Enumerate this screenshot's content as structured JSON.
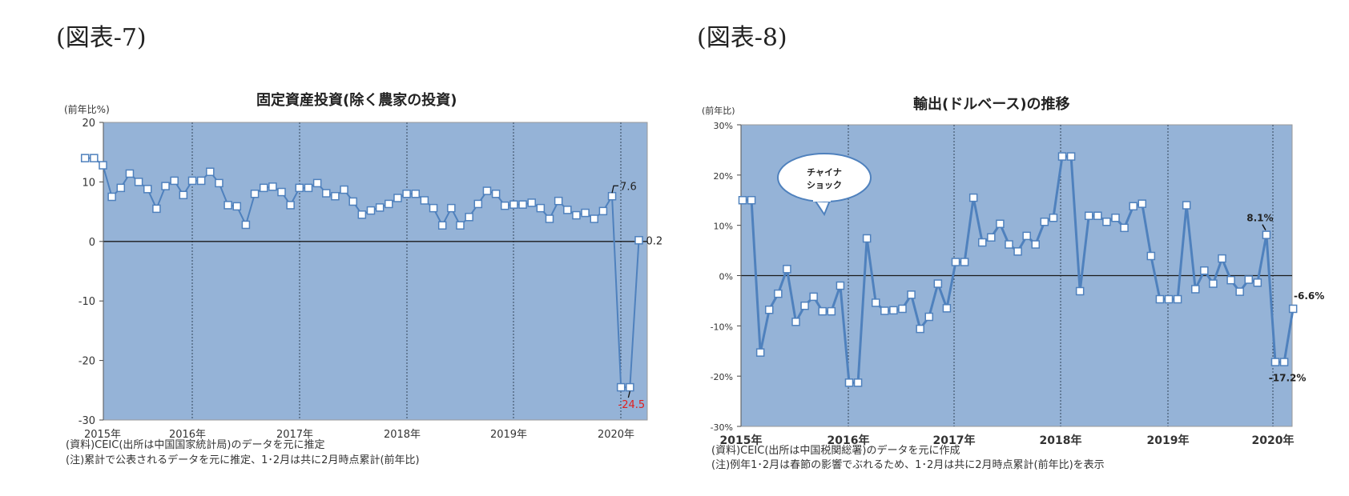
{
  "figures": [
    {
      "label": "(図表-7)"
    },
    {
      "label": "(図表-8)"
    }
  ],
  "chart_data": [
    {
      "type": "line",
      "title": "固定資産投資(除く農家の投資)",
      "ylabel": "(前年比%)",
      "xlabel": "",
      "ylim": [
        -30,
        20
      ],
      "yticks": [
        "20",
        "10",
        "0",
        "-10",
        "-20",
        "-30"
      ],
      "xticks": [
        "2015年",
        "2016年",
        "2017年",
        "2018年",
        "2019年",
        "2020年"
      ],
      "grid": "vertical dashed at year boundaries",
      "plot_bg": "#95b3d7",
      "line_color": "#4f81bd",
      "x": [
        "2015-01",
        "2015-02",
        "2015-03",
        "2015-04",
        "2015-05",
        "2015-06",
        "2015-07",
        "2015-08",
        "2015-09",
        "2015-10",
        "2015-11",
        "2015-12",
        "2016-01",
        "2016-02",
        "2016-03",
        "2016-04",
        "2016-05",
        "2016-06",
        "2016-07",
        "2016-08",
        "2016-09",
        "2016-10",
        "2016-11",
        "2016-12",
        "2017-01",
        "2017-02",
        "2017-03",
        "2017-04",
        "2017-05",
        "2017-06",
        "2017-07",
        "2017-08",
        "2017-09",
        "2017-10",
        "2017-11",
        "2017-12",
        "2018-01",
        "2018-02",
        "2018-03",
        "2018-04",
        "2018-05",
        "2018-06",
        "2018-07",
        "2018-08",
        "2018-09",
        "2018-10",
        "2018-11",
        "2018-12",
        "2019-01",
        "2019-02",
        "2019-03",
        "2019-04",
        "2019-05",
        "2019-06",
        "2019-07",
        "2019-08",
        "2019-09",
        "2019-10",
        "2019-11",
        "2019-12",
        "2020-01",
        "2020-02",
        "2020-03"
      ],
      "values": [
        14.0,
        14.0,
        12.8,
        7.5,
        9.0,
        11.4,
        10.0,
        8.8,
        5.5,
        9.3,
        10.2,
        7.8,
        10.2,
        10.2,
        11.7,
        9.8,
        6.1,
        5.9,
        2.8,
        8.0,
        9.0,
        9.2,
        8.3,
        6.1,
        9.0,
        9.0,
        9.8,
        8.1,
        7.6,
        8.7,
        6.7,
        4.5,
        5.2,
        5.7,
        6.3,
        7.3,
        8.0,
        8.0,
        6.9,
        5.6,
        2.7,
        5.6,
        2.7,
        4.1,
        6.3,
        8.5,
        8.0,
        6.0,
        6.2,
        6.2,
        6.5,
        5.6,
        3.8,
        6.8,
        5.3,
        4.4,
        4.8,
        3.8,
        5.1,
        7.6,
        -24.5,
        -24.5,
        0.2
      ],
      "annotations": [
        {
          "text": "7.6",
          "color": "#222222"
        },
        {
          "text": "-24.5",
          "color": "#e02020"
        },
        {
          "text": "0.2",
          "color": "#222222"
        }
      ],
      "notes": [
        "(資料)CEIC(出所は中国国家統計局)のデータを元に推定",
        "(注)累計で公表されるデータを元に推定、1･2月は共に2月時点累計(前年比)"
      ]
    },
    {
      "type": "line",
      "title": "輸出(ドルベース)の推移",
      "ylabel": "(前年比)",
      "xlabel": "",
      "ylim": [
        -30,
        30
      ],
      "yticks": [
        "30%",
        "20%",
        "10%",
        "0%",
        "-10%",
        "-20%",
        "-30%"
      ],
      "xticks": [
        "2015年",
        "2016年",
        "2017年",
        "2018年",
        "2019年",
        "2020年"
      ],
      "grid": "vertical dashed at year boundaries",
      "plot_bg": "#95b3d7",
      "line_color": "#4f81bd",
      "x": [
        "2015-01",
        "2015-02",
        "2015-03",
        "2015-04",
        "2015-05",
        "2015-06",
        "2015-07",
        "2015-08",
        "2015-09",
        "2015-10",
        "2015-11",
        "2015-12",
        "2016-01",
        "2016-02",
        "2016-03",
        "2016-04",
        "2016-05",
        "2016-06",
        "2016-07",
        "2016-08",
        "2016-09",
        "2016-10",
        "2016-11",
        "2016-12",
        "2017-01",
        "2017-02",
        "2017-03",
        "2017-04",
        "2017-05",
        "2017-06",
        "2017-07",
        "2017-08",
        "2017-09",
        "2017-10",
        "2017-11",
        "2017-12",
        "2018-01",
        "2018-02",
        "2018-03",
        "2018-04",
        "2018-05",
        "2018-06",
        "2018-07",
        "2018-08",
        "2018-09",
        "2018-10",
        "2018-11",
        "2018-12",
        "2019-01",
        "2019-02",
        "2019-03",
        "2019-04",
        "2019-05",
        "2019-06",
        "2019-07",
        "2019-08",
        "2019-09",
        "2019-10",
        "2019-11",
        "2019-12",
        "2020-01",
        "2020-02",
        "2020-03"
      ],
      "values": [
        15.0,
        15.0,
        -15.3,
        -6.8,
        -3.6,
        1.3,
        -9.2,
        -6.0,
        -4.2,
        -7.1,
        -7.1,
        -2.0,
        -21.3,
        -21.3,
        7.4,
        -5.4,
        -7.0,
        -6.9,
        -6.6,
        -3.8,
        -10.6,
        -8.2,
        -1.6,
        -6.5,
        2.7,
        2.7,
        15.5,
        6.6,
        7.6,
        10.3,
        6.2,
        4.8,
        7.9,
        6.2,
        10.7,
        11.5,
        23.7,
        23.7,
        -3.1,
        11.9,
        11.9,
        10.7,
        11.5,
        9.5,
        13.8,
        14.3,
        3.9,
        -4.7,
        -4.7,
        -4.7,
        14.0,
        -2.7,
        1.0,
        -1.6,
        3.4,
        -0.9,
        -3.2,
        -0.8,
        -1.4,
        8.1,
        -17.2,
        -17.2,
        -6.6
      ],
      "annotations": [
        {
          "text": "チャイナ\nショック",
          "type": "callout"
        },
        {
          "text": "8.1%"
        },
        {
          "text": "-17.2%"
        },
        {
          "text": "-6.6%"
        }
      ],
      "callout_lines": [
        "チャイナ",
        "ショック"
      ],
      "notes": [
        "(資料)CEIC(出所は中国税関総署)のデータを元に作成",
        "(注)例年1･2月は春節の影響でぶれるため、1･2月は共に2月時点累計(前年比)を表示"
      ]
    }
  ]
}
